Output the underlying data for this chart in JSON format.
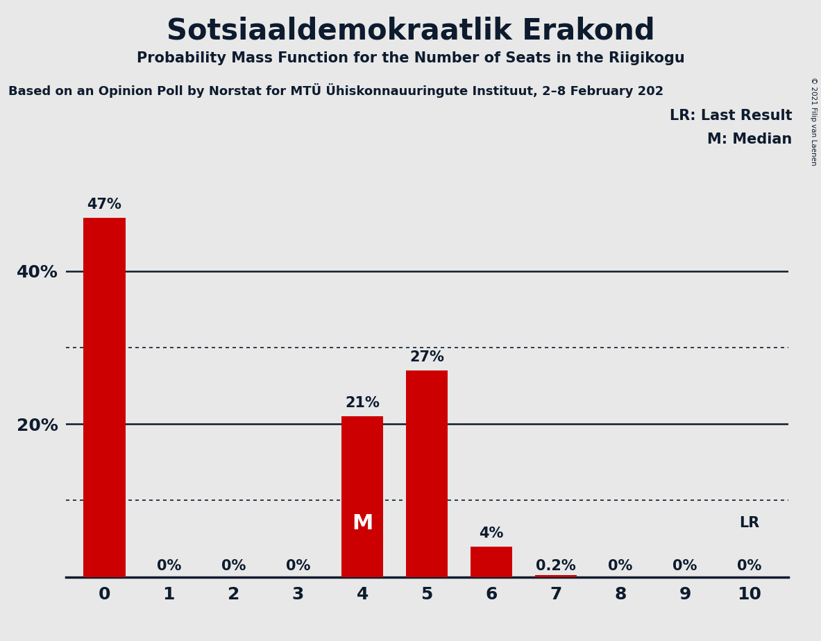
{
  "title": "Sotsiaaldemokraatlik Erakond",
  "subtitle": "Probability Mass Function for the Number of Seats in the Riigikogu",
  "source": "Based on an Opinion Poll by Norstat for MTÜ Ühiskonnauuringute Instituut, 2–8 February 202",
  "categories": [
    0,
    1,
    2,
    3,
    4,
    5,
    6,
    7,
    8,
    9,
    10
  ],
  "values": [
    47,
    0,
    0,
    0,
    21,
    27,
    4,
    0.2,
    0,
    0,
    0
  ],
  "labels": [
    "47%",
    "0%",
    "0%",
    "0%",
    "21%",
    "27%",
    "4%",
    "0.2%",
    "0%",
    "0%",
    "0%"
  ],
  "bar_color": "#cc0000",
  "background_color": "#e8e8e8",
  "text_color": "#0d1b2e",
  "ylim_max": 52,
  "median_bar": 4,
  "lr_bar": 10,
  "legend_lr": "LR: Last Result",
  "legend_m": "M: Median",
  "copyright": "© 2021 Filip van Laenen",
  "dotted_grid_vals": [
    10,
    30
  ],
  "solid_grid_vals": [
    20,
    40
  ],
  "ytick_positions": [
    20,
    40
  ],
  "ytick_labels": [
    "20%",
    "40%"
  ]
}
